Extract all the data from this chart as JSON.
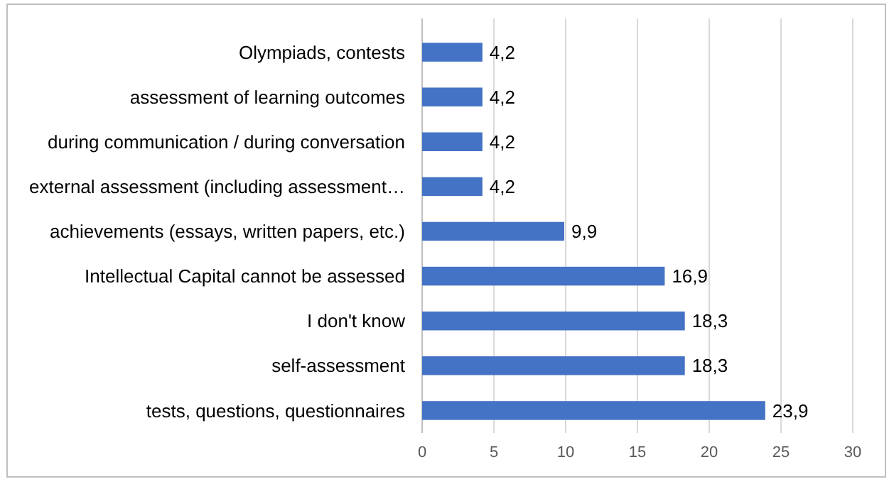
{
  "chart_data": {
    "type": "bar",
    "orientation": "horizontal",
    "categories": [
      "Olympiads, contests",
      "assessment of learning outcomes",
      "during communication / during conversation",
      "external assessment (including assessment…",
      "achievements (essays, written papers, etc.)",
      "Intellectual Capital cannot be assessed",
      "I don't know",
      "self-assessment",
      "tests, questions, questionnaires"
    ],
    "values": [
      4.2,
      4.2,
      4.2,
      4.2,
      9.9,
      16.9,
      18.3,
      18.3,
      23.9
    ],
    "value_labels": [
      "4,2",
      "4,2",
      "4,2",
      "4,2",
      "9,9",
      "16,9",
      "18,3",
      "18,3",
      "23,9"
    ],
    "color": "#4472c4",
    "xlim": [
      0,
      30
    ],
    "xticks": [
      0,
      5,
      10,
      15,
      20,
      25,
      30
    ],
    "grid": "x"
  }
}
